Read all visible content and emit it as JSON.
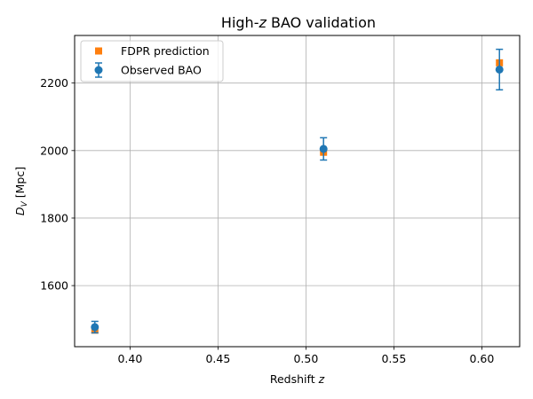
{
  "chart_data": {
    "type": "scatter",
    "title": "High-z BAO validation",
    "title_parts": {
      "prefix": "High-",
      "var": "z",
      "suffix": " BAO validation"
    },
    "xlabel": "Redshift z",
    "xlabel_parts": {
      "prefix": "Redshift ",
      "var": "z"
    },
    "ylabel": "D_V [Mpc]",
    "ylabel_parts": {
      "var": "D",
      "sub": "V",
      "suffix": " [Mpc]"
    },
    "xlim": [
      0.3685,
      0.6215
    ],
    "ylim": [
      1419,
      2341
    ],
    "xticks": [
      0.4,
      0.45,
      0.5,
      0.55,
      0.6
    ],
    "xtick_labels": [
      "0.40",
      "0.45",
      "0.50",
      "0.55",
      "0.60"
    ],
    "yticks": [
      1600,
      1800,
      2000,
      2200
    ],
    "ytick_labels": [
      "1600",
      "1800",
      "2000",
      "2200"
    ],
    "grid": true,
    "legend_position": "top-left",
    "series": [
      {
        "name": "FDPR prediction",
        "marker": "square",
        "color": "#ff7f0e",
        "x": [
          0.38,
          0.51,
          0.61
        ],
        "y": [
          1468,
          1995,
          2260
        ]
      },
      {
        "name": "Observed BAO",
        "marker": "circle",
        "color": "#1f77b4",
        "errorbars": true,
        "x": [
          0.38,
          0.51,
          0.61
        ],
        "y": [
          1477,
          2005,
          2240
        ],
        "yerr": [
          17,
          33,
          60
        ]
      }
    ]
  }
}
